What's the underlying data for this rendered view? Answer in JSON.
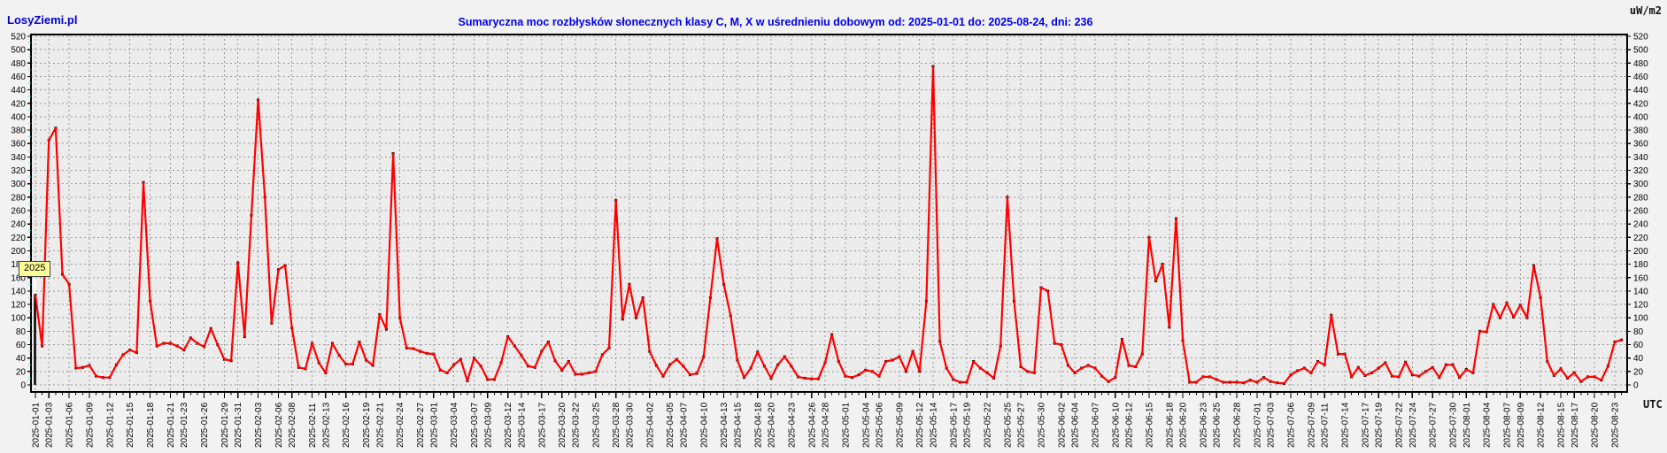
{
  "header": {
    "brand": "LosyZiemi.pl",
    "title": "Sumaryczna moc rozbłysków słonecznych klasy C, M, X w uśrednieniu dobowym od: 2025-01-01 do: 2025-08-24, dni: 236",
    "unit_label": "uW/m2"
  },
  "chart": {
    "utc_label": "UTC",
    "year_marker": {
      "label": "2025",
      "date": "2025-01-01",
      "marker_top_value": 134
    },
    "colors": {
      "line": "#ff0000",
      "point_marker": "#000000",
      "grid": "#999999",
      "frame": "#000000",
      "plot_background": "#ececec",
      "page_background": "#f2f2f2",
      "title_text": "#0000e6",
      "brand_text": "#0000cc",
      "year_box_fill": "#ffff99",
      "minor_tick_cyan": "#66cccc"
    }
  },
  "chart_data": {
    "type": "line",
    "title": "Sumaryczna moc rozbłysków słonecznych klasy C, M, X w uśrednieniu dobowym od: 2025-01-01 do: 2025-08-24, dni: 236",
    "ylabel": "uW/m2",
    "xlabel": "UTC",
    "ylim": [
      0,
      520
    ],
    "y_step": 20,
    "grid": true,
    "legend_position": "none",
    "x_start": "2025-01-01",
    "x_end": "2025-08-24",
    "days": 236,
    "tick_labels": [
      "2025-01-01",
      "2025-01-03",
      "2025-01-06",
      "2025-01-09",
      "2025-01-12",
      "2025-01-15",
      "2025-01-18",
      "2025-01-21",
      "2025-01-23",
      "2025-01-26",
      "2025-01-29",
      "2025-01-31",
      "2025-02-03",
      "2025-02-06",
      "2025-02-08",
      "2025-02-11",
      "2025-02-13",
      "2025-02-16",
      "2025-02-19",
      "2025-02-21",
      "2025-02-24",
      "2025-02-27",
      "2025-03-01",
      "2025-03-04",
      "2025-03-07",
      "2025-03-09",
      "2025-03-12",
      "2025-03-14",
      "2025-03-17",
      "2025-03-20",
      "2025-03-22",
      "2025-03-25",
      "2025-03-28",
      "2025-03-30",
      "2025-04-02",
      "2025-04-05",
      "2025-04-07",
      "2025-04-10",
      "2025-04-13",
      "2025-04-15",
      "2025-04-18",
      "2025-04-20",
      "2025-04-23",
      "2025-04-26",
      "2025-04-28",
      "2025-05-01",
      "2025-05-04",
      "2025-05-06",
      "2025-05-09",
      "2025-05-12",
      "2025-05-14",
      "2025-05-17",
      "2025-05-19",
      "2025-05-22",
      "2025-05-25",
      "2025-05-27",
      "2025-05-30",
      "2025-06-02",
      "2025-06-04",
      "2025-06-07",
      "2025-06-10",
      "2025-06-12",
      "2025-06-15",
      "2025-06-18",
      "2025-06-20",
      "2025-06-23",
      "2025-06-25",
      "2025-06-28",
      "2025-07-01",
      "2025-07-03",
      "2025-07-06",
      "2025-07-09",
      "2025-07-11",
      "2025-07-14",
      "2025-07-17",
      "2025-07-19",
      "2025-07-22",
      "2025-07-24",
      "2025-07-27",
      "2025-07-30",
      "2025-08-01",
      "2025-08-04",
      "2025-08-07",
      "2025-08-09",
      "2025-08-12",
      "2025-08-15",
      "2025-08-17",
      "2025-08-20",
      "2025-08-23"
    ],
    "series": [
      {
        "name": "Sumaryczna moc rozbłysków (uW/m2)",
        "color": "#ff0000",
        "values": [
          134,
          58,
          365,
          383,
          165,
          150,
          25,
          26,
          29,
          13,
          11,
          11,
          30,
          45,
          52,
          48,
          302,
          125,
          58,
          62,
          62,
          58,
          52,
          70,
          62,
          57,
          84,
          60,
          38,
          36,
          182,
          72,
          253,
          425,
          280,
          92,
          172,
          178,
          85,
          26,
          24,
          62,
          33,
          18,
          62,
          44,
          31,
          31,
          64,
          37,
          29,
          105,
          83,
          345,
          100,
          55,
          54,
          50,
          47,
          46,
          22,
          18,
          30,
          38,
          6,
          40,
          28,
          8,
          8,
          33,
          72,
          58,
          44,
          28,
          26,
          50,
          64,
          36,
          22,
          35,
          16,
          16,
          18,
          20,
          45,
          55,
          275,
          98,
          150,
          100,
          130,
          50,
          29,
          13,
          30,
          38,
          28,
          15,
          17,
          42,
          130,
          218,
          150,
          103,
          37,
          11,
          25,
          49,
          28,
          10,
          30,
          42,
          28,
          12,
          10,
          9,
          9,
          33,
          75,
          35,
          13,
          11,
          15,
          22,
          20,
          13,
          35,
          37,
          42,
          20,
          50,
          20,
          125,
          475,
          65,
          25,
          8,
          4,
          4,
          35,
          25,
          18,
          10,
          58,
          280,
          125,
          27,
          20,
          18,
          145,
          140,
          62,
          60,
          29,
          18,
          25,
          29,
          25,
          13,
          5,
          11,
          68,
          29,
          27,
          46,
          220,
          155,
          180,
          86,
          248,
          66,
          4,
          4,
          12,
          12,
          8,
          4,
          4,
          4,
          3,
          7,
          4,
          11,
          5,
          3,
          2,
          15,
          21,
          25,
          18,
          35,
          30,
          104,
          46,
          46,
          12,
          26,
          14,
          18,
          25,
          33,
          13,
          12,
          34,
          15,
          13,
          20,
          26,
          11,
          30,
          30,
          11,
          23,
          18,
          80,
          79,
          120,
          100,
          122,
          101,
          119,
          100,
          178,
          130,
          35,
          14,
          24,
          10,
          18,
          5,
          12,
          12,
          7,
          28,
          64,
          67
        ]
      }
    ]
  }
}
